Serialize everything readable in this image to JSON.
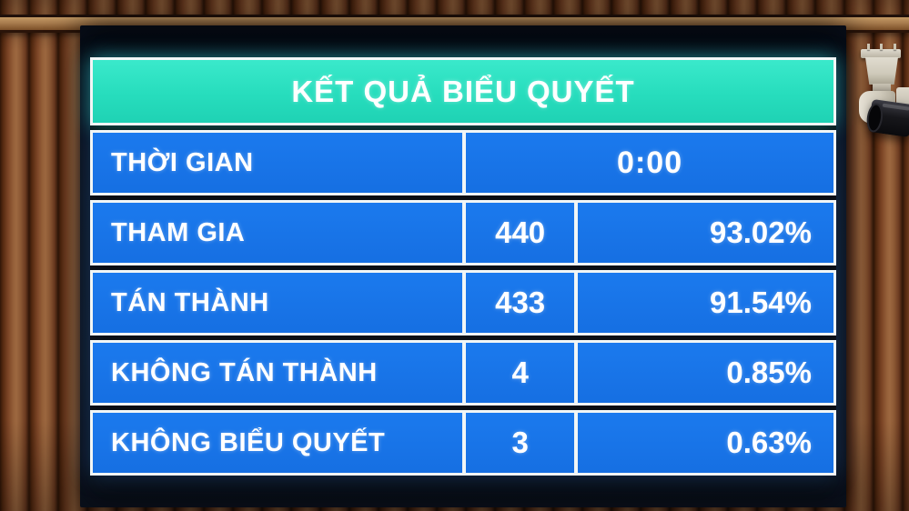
{
  "screen": {
    "title": "KẾT QUẢ BIỂU QUYẾT",
    "time_row": {
      "label": "THỜI GIAN",
      "value": "0:00"
    },
    "rows": [
      {
        "label": "THAM GIA",
        "count": "440",
        "percent": "93.02%"
      },
      {
        "label": "TÁN THÀNH",
        "count": "433",
        "percent": "91.54%"
      },
      {
        "label": "KHÔNG TÁN THÀNH",
        "count": "4",
        "percent": "0.85%"
      },
      {
        "label": "KHÔNG BIỂU QUYẾT",
        "count": "3",
        "percent": "0.63%"
      }
    ],
    "colors": {
      "header_bg": "#27ddbd",
      "row_bg": "#1773e6",
      "cell_border": "#f1f6f6",
      "text": "#ffffff",
      "bezel": "#0a0e14"
    }
  },
  "chart_data": {
    "type": "table",
    "title": "KẾT QUẢ BIỂU QUYẾT",
    "categories": [
      "THỜI GIAN",
      "THAM GIA",
      "TÁN THÀNH",
      "KHÔNG TÁN THÀNH",
      "KHÔNG BIỂU QUYẾT"
    ],
    "series": [
      {
        "name": "count",
        "values": [
          null,
          440,
          433,
          4,
          3
        ]
      },
      {
        "name": "percent",
        "values": [
          null,
          93.02,
          91.54,
          0.85,
          0.63
        ]
      }
    ],
    "time": "0:00"
  }
}
